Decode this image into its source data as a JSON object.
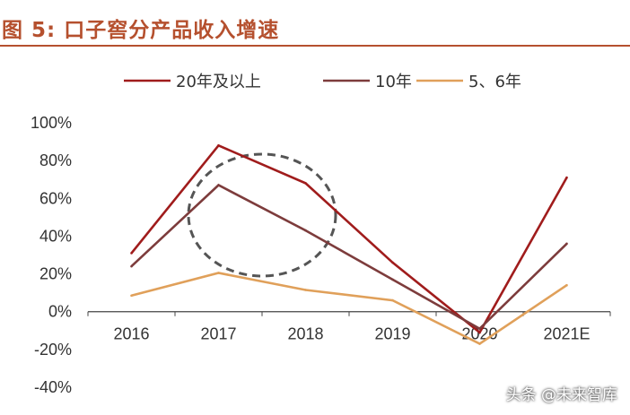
{
  "figure": {
    "label": "图 5:",
    "title": "口子窖分产品收入增速"
  },
  "watermark": "头条 @未来智库",
  "chart_data": {
    "type": "line",
    "categories": [
      "2016",
      "2017",
      "2018",
      "2019",
      "2020",
      "2021E"
    ],
    "y_ticks": [
      "100%",
      "80%",
      "60%",
      "40%",
      "20%",
      "0%",
      "-20%",
      "-40%"
    ],
    "ylim": [
      -40,
      100
    ],
    "unit": "%",
    "legend_position": "top",
    "grid": false,
    "series": [
      {
        "name": "20年及以上",
        "color": "#a01c1c",
        "values": [
          31,
          88,
          68,
          26,
          -11,
          71
        ]
      },
      {
        "name": "10年",
        "color": "#7d3c3c",
        "values": [
          24,
          67,
          43,
          17,
          -9,
          36
        ]
      },
      {
        "name": "5、6年",
        "color": "#e0a05a",
        "values": [
          8.5,
          20.5,
          11.5,
          6,
          -17,
          14
        ]
      }
    ],
    "annotation": {
      "type": "dashed-ellipse",
      "around_categories": [
        "2017",
        "2018"
      ]
    }
  }
}
